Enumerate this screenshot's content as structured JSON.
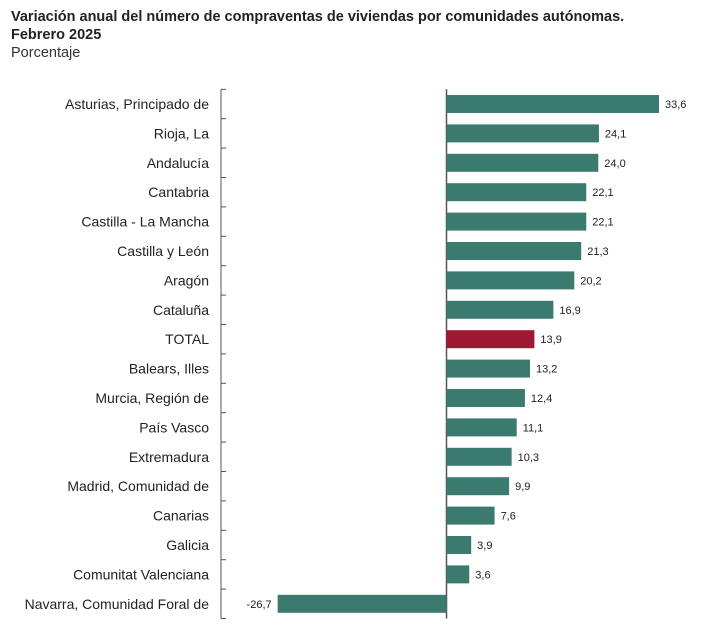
{
  "header": {
    "title_line1": "Variación anual del número de compraventas de viviendas por comunidades autónomas.",
    "title_line2": "Febrero 2025",
    "subtitle": "Porcentaje"
  },
  "colors": {
    "bar": "#3b7a6e",
    "highlight": "#9e1733",
    "axis": "#555555"
  },
  "chart_data": {
    "type": "bar",
    "orientation": "horizontal",
    "title": "Variación anual del número de compraventas de viviendas por comunidades autónomas. Febrero 2025",
    "subtitle": "Porcentaje",
    "xlim": [
      -34,
      35
    ],
    "grid": false,
    "highlight_category": "TOTAL",
    "categories": [
      "Asturias, Principado de",
      "Rioja, La",
      "Andalucía",
      "Cantabria",
      "Castilla - La Mancha",
      "Castilla y León",
      "Aragón",
      "Cataluña",
      "TOTAL",
      "Balears, Illes",
      "Murcia, Región de",
      "País Vasco",
      "Extremadura",
      "Madrid, Comunidad de",
      "Canarias",
      "Galicia",
      "Comunitat Valenciana",
      "Navarra, Comunidad Foral de"
    ],
    "values": [
      33.6,
      24.1,
      24.0,
      22.1,
      22.1,
      21.3,
      20.2,
      16.9,
      13.9,
      13.2,
      12.4,
      11.1,
      10.3,
      9.9,
      7.6,
      3.9,
      3.6,
      -26.7
    ],
    "value_labels": [
      "33,6",
      "24,1",
      "24,0",
      "22,1",
      "22,1",
      "21,3",
      "20,2",
      "16,9",
      "13,9",
      "13,2",
      "12,4",
      "11,1",
      "10,3",
      "9,9",
      "7,6",
      "3,9",
      "3,6",
      "-26,7"
    ]
  }
}
